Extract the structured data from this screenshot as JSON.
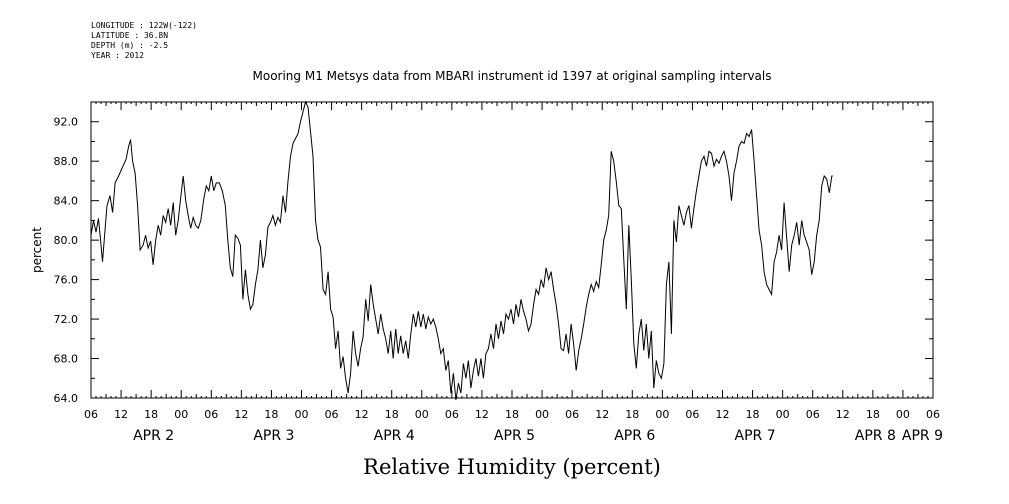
{
  "meta": {
    "longitude": "LONGITUDE : 122W(-122)",
    "latitude": "LATITUDE : 36.8N",
    "depth": "DEPTH (m) : -2.5",
    "year": "YEAR : 2012"
  },
  "chart_data": {
    "type": "line",
    "title": "Mooring M1 Metsys data from MBARI instrument id 1397 at original sampling intervals",
    "xlabel": "Relative Humidity (percent)",
    "ylabel": "percent",
    "ylim": [
      64.0,
      94.0
    ],
    "xlim_hours": [
      0,
      168
    ],
    "y_ticks": [
      "64.0",
      "68.0",
      "72.0",
      "76.0",
      "80.0",
      "84.0",
      "88.0",
      "92.0"
    ],
    "x_tick_labels": [
      "06",
      "12",
      "18",
      "00",
      "06",
      "12",
      "18",
      "00",
      "06",
      "12",
      "18",
      "00",
      "06",
      "12",
      "18",
      "00",
      "06",
      "12",
      "18",
      "00",
      "06",
      "12",
      "18",
      "00",
      "06",
      "12",
      "18",
      "00",
      "06"
    ],
    "date_labels": [
      {
        "text": "APR 2",
        "hour": 6
      },
      {
        "text": "APR 3",
        "hour": 30
      },
      {
        "text": "APR 4",
        "hour": 54
      },
      {
        "text": "APR 5",
        "hour": 78
      },
      {
        "text": "APR 6",
        "hour": 102
      },
      {
        "text": "APR 7",
        "hour": 126
      },
      {
        "text": "APR 8",
        "hour": 150
      },
      {
        "text": "APR 9",
        "hour": 168
      }
    ],
    "x_start": "2012-04-02 06:00",
    "x_end": "2012-04-09 06:00",
    "series": [
      {
        "values": [
          [
            0,
            80.5
          ],
          [
            0.5,
            82
          ],
          [
            1,
            80.8
          ],
          [
            1.5,
            82.2
          ],
          [
            2,
            79.5
          ],
          [
            2.3,
            77.8
          ],
          [
            2.8,
            81
          ],
          [
            3.2,
            83.5
          ],
          [
            3.8,
            84.5
          ],
          [
            4.3,
            82.8
          ],
          [
            4.8,
            85.8
          ],
          [
            5.5,
            86.5
          ],
          [
            6.2,
            87.3
          ],
          [
            7,
            88.2
          ],
          [
            7.5,
            89.5
          ],
          [
            7.9,
            90.2
          ],
          [
            8.3,
            88
          ],
          [
            8.8,
            86.8
          ],
          [
            9.3,
            83.5
          ],
          [
            9.8,
            79
          ],
          [
            10.4,
            79.5
          ],
          [
            10.9,
            80.5
          ],
          [
            11.4,
            79.2
          ],
          [
            11.9,
            79.9
          ],
          [
            12.4,
            77.5
          ],
          [
            12.9,
            80
          ],
          [
            13.4,
            81.5
          ],
          [
            13.9,
            80.5
          ],
          [
            14.4,
            82.5
          ],
          [
            14.9,
            81.8
          ],
          [
            15.4,
            83.2
          ],
          [
            15.9,
            81.5
          ],
          [
            16.4,
            83.8
          ],
          [
            16.9,
            80.5
          ],
          [
            17.4,
            82
          ],
          [
            17.9,
            84.3
          ],
          [
            18.4,
            86.5
          ],
          [
            18.9,
            84
          ],
          [
            19.4,
            82.5
          ],
          [
            19.9,
            81.2
          ],
          [
            20.4,
            82.3
          ],
          [
            20.9,
            81.5
          ],
          [
            21.4,
            81.2
          ],
          [
            21.9,
            82
          ],
          [
            22.5,
            84.2
          ],
          [
            23,
            85.5
          ],
          [
            23.5,
            85
          ],
          [
            24,
            86.5
          ],
          [
            24.5,
            85
          ],
          [
            25,
            85.8
          ],
          [
            25.6,
            85.8
          ],
          [
            26.2,
            85
          ],
          [
            26.8,
            83.5
          ],
          [
            27.3,
            80
          ],
          [
            27.8,
            77.2
          ],
          [
            28.3,
            76.3
          ],
          [
            28.8,
            80.5
          ],
          [
            29.3,
            80.2
          ],
          [
            29.8,
            79.5
          ],
          [
            30.3,
            74
          ],
          [
            30.8,
            77
          ],
          [
            31.3,
            74.5
          ],
          [
            31.8,
            73
          ],
          [
            32.3,
            73.5
          ],
          [
            32.8,
            75.5
          ],
          [
            33.3,
            77
          ],
          [
            33.8,
            80
          ],
          [
            34.3,
            77.2
          ],
          [
            34.8,
            78.5
          ],
          [
            35.3,
            81.3
          ],
          [
            35.8,
            81.8
          ],
          [
            36.3,
            82.5
          ],
          [
            36.8,
            81.5
          ],
          [
            37.3,
            82.3
          ],
          [
            37.8,
            81.8
          ],
          [
            38.3,
            84.5
          ],
          [
            38.8,
            82.8
          ],
          [
            39.3,
            86
          ],
          [
            39.8,
            88.5
          ],
          [
            40.3,
            89.8
          ],
          [
            40.8,
            90.3
          ],
          [
            41.3,
            90.8
          ],
          [
            41.8,
            92
          ],
          [
            42.3,
            93
          ],
          [
            42.8,
            94
          ],
          [
            43.3,
            93.5
          ],
          [
            43.8,
            91
          ],
          [
            44.3,
            88.5
          ],
          [
            44.8,
            82
          ],
          [
            45.3,
            80
          ],
          [
            45.8,
            79.3
          ],
          [
            46.3,
            75
          ],
          [
            46.8,
            74.5
          ],
          [
            47.3,
            76.8
          ],
          [
            47.8,
            73
          ],
          [
            48.3,
            72.2
          ],
          [
            48.8,
            69
          ],
          [
            49.3,
            70.8
          ],
          [
            49.8,
            67
          ],
          [
            50.3,
            68.2
          ],
          [
            50.8,
            66
          ],
          [
            51.3,
            64.5
          ],
          [
            51.8,
            66.5
          ],
          [
            52.3,
            70.8
          ],
          [
            52.8,
            68.5
          ],
          [
            53.3,
            67.2
          ],
          [
            53.8,
            69
          ],
          [
            54.3,
            70.2
          ],
          [
            54.8,
            74
          ],
          [
            55.3,
            71.8
          ],
          [
            55.8,
            75.5
          ],
          [
            56.3,
            73.5
          ],
          [
            56.8,
            72
          ],
          [
            57.3,
            70.5
          ],
          [
            57.8,
            72.5
          ],
          [
            58.3,
            71
          ],
          [
            58.8,
            70
          ],
          [
            59.3,
            68.5
          ],
          [
            59.8,
            70.8
          ],
          [
            60.3,
            68
          ],
          [
            60.8,
            71
          ],
          [
            61.3,
            68.5
          ],
          [
            61.8,
            70.3
          ],
          [
            62.3,
            68.5
          ],
          [
            62.8,
            69.8
          ],
          [
            63.3,
            68
          ],
          [
            63.8,
            70.5
          ],
          [
            64.3,
            72.5
          ],
          [
            64.8,
            71.2
          ],
          [
            65.3,
            72.8
          ],
          [
            65.8,
            71.2
          ],
          [
            66.3,
            72.5
          ],
          [
            66.8,
            71
          ],
          [
            67.3,
            72.2
          ],
          [
            67.8,
            71.5
          ],
          [
            68.3,
            72
          ],
          [
            68.8,
            71.2
          ],
          [
            69.3,
            70
          ],
          [
            69.8,
            68.5
          ],
          [
            70.3,
            69
          ],
          [
            70.8,
            66.8
          ],
          [
            71.3,
            67.8
          ],
          [
            71.8,
            64.5
          ],
          [
            72.3,
            66.5
          ],
          [
            72.8,
            63.8
          ],
          [
            73.3,
            65.5
          ],
          [
            73.8,
            64.5
          ],
          [
            74.3,
            67.5
          ],
          [
            74.8,
            66
          ],
          [
            75.3,
            67.8
          ],
          [
            75.8,
            65
          ],
          [
            76.3,
            66.8
          ],
          [
            76.8,
            68
          ],
          [
            77.3,
            66.2
          ],
          [
            77.8,
            68
          ],
          [
            78.3,
            66
          ],
          [
            78.8,
            68.5
          ],
          [
            79.3,
            69
          ],
          [
            79.8,
            70.5
          ],
          [
            80.3,
            69
          ],
          [
            80.8,
            71.5
          ],
          [
            81.3,
            70
          ],
          [
            81.8,
            71.8
          ],
          [
            82.3,
            70.5
          ],
          [
            82.8,
            72.5
          ],
          [
            83.3,
            72
          ],
          [
            83.8,
            73
          ],
          [
            84.3,
            71.5
          ],
          [
            84.8,
            73.5
          ],
          [
            85.3,
            72.2
          ],
          [
            85.8,
            74
          ],
          [
            86.3,
            72.8
          ],
          [
            86.8,
            72
          ],
          [
            87.3,
            70.8
          ],
          [
            87.8,
            71.5
          ],
          [
            88.3,
            73.5
          ],
          [
            88.8,
            75
          ],
          [
            89.3,
            74.5
          ],
          [
            89.8,
            76
          ],
          [
            90.3,
            75.2
          ],
          [
            90.8,
            77.2
          ],
          [
            91.3,
            76
          ],
          [
            91.8,
            76.8
          ],
          [
            92.3,
            75
          ],
          [
            92.8,
            73.5
          ],
          [
            93.3,
            71.5
          ],
          [
            93.8,
            69
          ],
          [
            94.3,
            68.8
          ],
          [
            94.8,
            70.5
          ],
          [
            95.3,
            68.5
          ],
          [
            95.8,
            71.5
          ],
          [
            96.3,
            69.5
          ],
          [
            96.8,
            66.8
          ],
          [
            97.3,
            68.8
          ],
          [
            97.8,
            70
          ],
          [
            98.3,
            71.5
          ],
          [
            98.8,
            73.2
          ],
          [
            99.3,
            74.5
          ],
          [
            99.8,
            75.5
          ],
          [
            100.3,
            74.8
          ],
          [
            100.8,
            75.8
          ],
          [
            101.3,
            75.2
          ],
          [
            101.8,
            77.5
          ],
          [
            102.3,
            80
          ],
          [
            102.8,
            81
          ],
          [
            103.3,
            82.5
          ],
          [
            103.8,
            89
          ],
          [
            104.3,
            88
          ],
          [
            104.8,
            86
          ],
          [
            105.3,
            83.5
          ],
          [
            105.8,
            83.2
          ],
          [
            106.3,
            78
          ],
          [
            106.8,
            73
          ],
          [
            107.3,
            81.5
          ],
          [
            107.8,
            76
          ],
          [
            108.3,
            69.5
          ],
          [
            108.8,
            67
          ],
          [
            109.3,
            70.5
          ],
          [
            109.8,
            72
          ],
          [
            110.3,
            68.8
          ],
          [
            110.8,
            71.5
          ],
          [
            111.3,
            68
          ],
          [
            111.8,
            70.8
          ],
          [
            112.3,
            65
          ],
          [
            112.8,
            67.8
          ],
          [
            113.3,
            66.5
          ],
          [
            113.8,
            66
          ],
          [
            114.3,
            67.5
          ],
          [
            114.8,
            75.5
          ],
          [
            115.3,
            77.8
          ],
          [
            115.8,
            70.5
          ],
          [
            116.3,
            82
          ],
          [
            116.8,
            79.8
          ],
          [
            117.3,
            83.5
          ],
          [
            117.8,
            82.5
          ],
          [
            118.3,
            81.5
          ],
          [
            118.8,
            82.8
          ],
          [
            119.3,
            83.5
          ],
          [
            119.8,
            81.2
          ],
          [
            120.3,
            83.2
          ],
          [
            120.8,
            85
          ],
          [
            121.3,
            86.5
          ],
          [
            121.8,
            88
          ],
          [
            122.3,
            88.5
          ],
          [
            122.8,
            87.5
          ],
          [
            123.3,
            89
          ],
          [
            123.8,
            88.8
          ],
          [
            124.3,
            87.5
          ],
          [
            124.8,
            88.2
          ],
          [
            125.3,
            87.8
          ],
          [
            125.8,
            88.5
          ],
          [
            126.3,
            89
          ],
          [
            126.8,
            88
          ],
          [
            127.3,
            86.5
          ],
          [
            127.8,
            84
          ],
          [
            128.3,
            86.8
          ],
          [
            128.8,
            88
          ],
          [
            129.3,
            89.5
          ],
          [
            129.8,
            90
          ],
          [
            130.3,
            89.8
          ],
          [
            130.8,
            90.8
          ],
          [
            131.3,
            90.5
          ],
          [
            131.8,
            91.2
          ],
          [
            132.3,
            88
          ],
          [
            132.8,
            84.5
          ],
          [
            133.3,
            81
          ],
          [
            133.8,
            79.5
          ],
          [
            134.3,
            76.8
          ],
          [
            134.8,
            75.5
          ],
          [
            135.3,
            75
          ],
          [
            135.8,
            74.5
          ],
          [
            136.3,
            77.8
          ],
          [
            136.8,
            78.8
          ],
          [
            137.3,
            80.5
          ],
          [
            137.8,
            79
          ],
          [
            138.3,
            83.8
          ],
          [
            138.8,
            80.2
          ],
          [
            139.3,
            76.8
          ],
          [
            139.8,
            79.5
          ],
          [
            140.3,
            80.5
          ],
          [
            140.8,
            81.8
          ],
          [
            141.3,
            79.5
          ],
          [
            141.8,
            82
          ],
          [
            142.3,
            80.5
          ],
          [
            142.8,
            79.8
          ],
          [
            143.3,
            79
          ],
          [
            143.8,
            76.5
          ],
          [
            144.3,
            77.8
          ],
          [
            144.8,
            80.5
          ],
          [
            145.3,
            82
          ],
          [
            145.8,
            85.5
          ],
          [
            146.3,
            86.5
          ],
          [
            146.8,
            86.2
          ],
          [
            147.3,
            84.8
          ],
          [
            147.8,
            86.5
          ],
          [
            148,
            86.5
          ]
        ]
      }
    ]
  }
}
